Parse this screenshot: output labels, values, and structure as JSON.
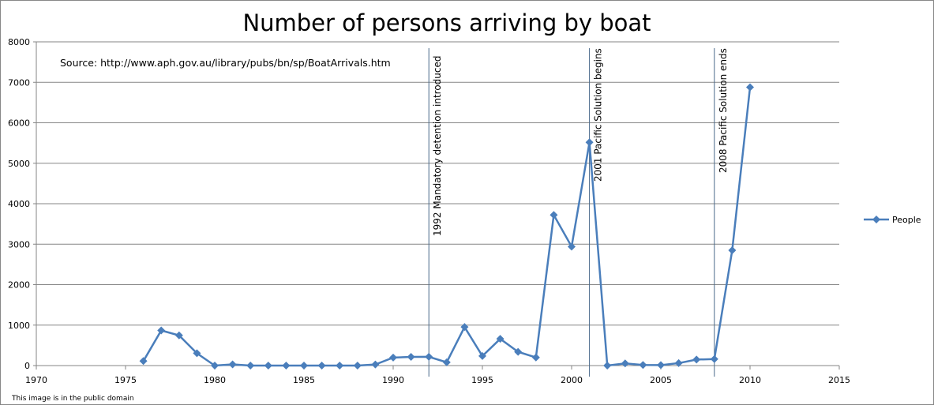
{
  "chart_data": {
    "type": "line",
    "title": "Number of persons arriving by boat",
    "annotation_source": "Source: http://www.aph.gov.au/library/pubs/bn/sp/BoatArrivals.htm",
    "footer_note": "This image is in the public domain",
    "xlim": [
      1970,
      2015
    ],
    "ylim": [
      0,
      8000
    ],
    "x_ticks": [
      1970,
      1975,
      1980,
      1985,
      1990,
      1995,
      2000,
      2005,
      2010,
      2015
    ],
    "y_ticks": [
      0,
      1000,
      2000,
      3000,
      4000,
      5000,
      6000,
      7000,
      8000
    ],
    "grid": "horizontal major",
    "legend": "right",
    "series": [
      {
        "name": "People",
        "color": "#4a7ebb",
        "marker": "diamond",
        "x": [
          1976,
          1977,
          1978,
          1979,
          1980,
          1981,
          1982,
          1983,
          1984,
          1985,
          1986,
          1987,
          1988,
          1989,
          1990,
          1991,
          1992,
          1993,
          1994,
          1995,
          1996,
          1997,
          1998,
          1999,
          2000,
          2001,
          2002,
          2003,
          2004,
          2005,
          2006,
          2007,
          2008,
          2009,
          2010
        ],
        "y": [
          111,
          868,
          746,
          304,
          0,
          30,
          0,
          0,
          0,
          0,
          0,
          0,
          0,
          26,
          198,
          214,
          216,
          81,
          953,
          237,
          660,
          339,
          200,
          3721,
          2939,
          5516,
          1,
          53,
          15,
          11,
          60,
          148,
          161,
          2850,
          6879
        ]
      }
    ],
    "events": [
      {
        "x": 1992,
        "label": "1992 Mandatory detention introduced"
      },
      {
        "x": 2001,
        "label": "2001 Pacific Solution begins"
      },
      {
        "x": 2008,
        "label": "2008 Pacific Solution ends"
      }
    ]
  }
}
